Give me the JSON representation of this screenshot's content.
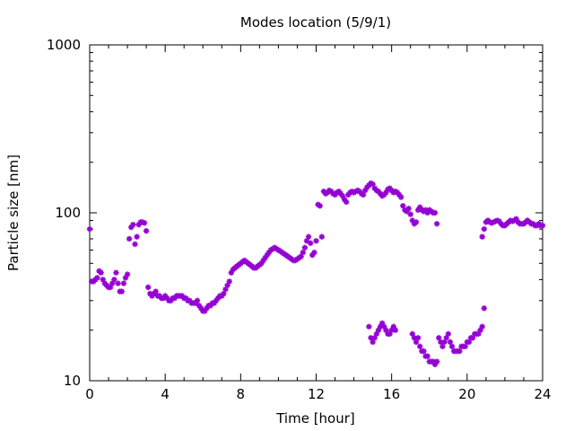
{
  "chart_data": {
    "type": "scatter",
    "title": "Modes location (5/9/1)",
    "xlabel": "Time [hour]",
    "ylabel": "Particle size [nm]",
    "xlim": [
      0,
      24
    ],
    "ylim": [
      10,
      1000
    ],
    "yscale": "log",
    "xticks": [
      0,
      4,
      8,
      12,
      16,
      20,
      24
    ],
    "xtick_labels": [
      "0",
      "4",
      "8",
      "12",
      "16",
      "20",
      "24"
    ],
    "yticks": [
      10,
      100,
      1000
    ],
    "ytick_labels": [
      "10",
      "100",
      "1000"
    ],
    "grid": false,
    "legend": "none",
    "marker": "star",
    "marker_color": "#9400d3",
    "points": [
      [
        0.0,
        80
      ],
      [
        0.1,
        39
      ],
      [
        0.2,
        39
      ],
      [
        0.3,
        40
      ],
      [
        0.4,
        41
      ],
      [
        0.5,
        45
      ],
      [
        0.6,
        44
      ],
      [
        0.7,
        40
      ],
      [
        0.8,
        38
      ],
      [
        0.9,
        37
      ],
      [
        1.0,
        36
      ],
      [
        1.1,
        36
      ],
      [
        1.2,
        38
      ],
      [
        1.3,
        40
      ],
      [
        1.4,
        44
      ],
      [
        1.5,
        38
      ],
      [
        1.6,
        34
      ],
      [
        1.7,
        34
      ],
      [
        1.8,
        38
      ],
      [
        1.9,
        41
      ],
      [
        2.0,
        43
      ],
      [
        2.1,
        70
      ],
      [
        2.2,
        82
      ],
      [
        2.3,
        85
      ],
      [
        2.4,
        65
      ],
      [
        2.5,
        72
      ],
      [
        2.6,
        85
      ],
      [
        2.7,
        88
      ],
      [
        2.8,
        88
      ],
      [
        2.9,
        87
      ],
      [
        3.0,
        78
      ],
      [
        3.1,
        36
      ],
      [
        3.2,
        33
      ],
      [
        3.3,
        32
      ],
      [
        3.4,
        33
      ],
      [
        3.5,
        34
      ],
      [
        3.6,
        32
      ],
      [
        3.7,
        32
      ],
      [
        3.8,
        31
      ],
      [
        3.9,
        31
      ],
      [
        4.0,
        32
      ],
      [
        4.1,
        31
      ],
      [
        4.2,
        30
      ],
      [
        4.3,
        30
      ],
      [
        4.4,
        31
      ],
      [
        4.5,
        31
      ],
      [
        4.6,
        32
      ],
      [
        4.7,
        32
      ],
      [
        4.8,
        32
      ],
      [
        4.9,
        32
      ],
      [
        5.0,
        31
      ],
      [
        5.1,
        31
      ],
      [
        5.2,
        30
      ],
      [
        5.3,
        30
      ],
      [
        5.4,
        29
      ],
      [
        5.5,
        29
      ],
      [
        5.6,
        29
      ],
      [
        5.7,
        30
      ],
      [
        5.8,
        28
      ],
      [
        5.9,
        27
      ],
      [
        6.0,
        26
      ],
      [
        6.1,
        26
      ],
      [
        6.2,
        27
      ],
      [
        6.3,
        28
      ],
      [
        6.4,
        28
      ],
      [
        6.5,
        29
      ],
      [
        6.6,
        29
      ],
      [
        6.7,
        30
      ],
      [
        6.8,
        31
      ],
      [
        6.9,
        32
      ],
      [
        7.0,
        32
      ],
      [
        7.1,
        33
      ],
      [
        7.2,
        35
      ],
      [
        7.3,
        37
      ],
      [
        7.4,
        39
      ],
      [
        7.5,
        44
      ],
      [
        7.6,
        46
      ],
      [
        7.7,
        47
      ],
      [
        7.8,
        48
      ],
      [
        7.9,
        49
      ],
      [
        8.0,
        50
      ],
      [
        8.1,
        51
      ],
      [
        8.2,
        52
      ],
      [
        8.3,
        51
      ],
      [
        8.4,
        50
      ],
      [
        8.5,
        49
      ],
      [
        8.6,
        48
      ],
      [
        8.7,
        47
      ],
      [
        8.8,
        47
      ],
      [
        8.9,
        48
      ],
      [
        9.0,
        49
      ],
      [
        9.1,
        50
      ],
      [
        9.2,
        52
      ],
      [
        9.3,
        54
      ],
      [
        9.4,
        56
      ],
      [
        9.5,
        58
      ],
      [
        9.6,
        60
      ],
      [
        9.7,
        61
      ],
      [
        9.8,
        62
      ],
      [
        9.9,
        61
      ],
      [
        10.0,
        60
      ],
      [
        10.1,
        59
      ],
      [
        10.2,
        58
      ],
      [
        10.3,
        57
      ],
      [
        10.4,
        56
      ],
      [
        10.5,
        55
      ],
      [
        10.6,
        54
      ],
      [
        10.7,
        53
      ],
      [
        10.8,
        52
      ],
      [
        10.9,
        52
      ],
      [
        11.0,
        53
      ],
      [
        11.1,
        54
      ],
      [
        11.2,
        55
      ],
      [
        11.3,
        58
      ],
      [
        11.4,
        62
      ],
      [
        11.5,
        68
      ],
      [
        11.6,
        72
      ],
      [
        11.7,
        66
      ],
      [
        11.8,
        56
      ],
      [
        11.9,
        58
      ],
      [
        12.0,
        68
      ],
      [
        12.1,
        112
      ],
      [
        12.2,
        110
      ],
      [
        12.3,
        72
      ],
      [
        12.4,
        134
      ],
      [
        12.5,
        130
      ],
      [
        12.6,
        132
      ],
      [
        12.7,
        136
      ],
      [
        12.8,
        134
      ],
      [
        12.9,
        130
      ],
      [
        13.0,
        128
      ],
      [
        13.1,
        132
      ],
      [
        13.2,
        134
      ],
      [
        13.3,
        130
      ],
      [
        13.4,
        126
      ],
      [
        13.5,
        120
      ],
      [
        13.6,
        116
      ],
      [
        13.7,
        128
      ],
      [
        13.8,
        132
      ],
      [
        13.9,
        134
      ],
      [
        14.0,
        132
      ],
      [
        14.1,
        134
      ],
      [
        14.2,
        136
      ],
      [
        14.3,
        134
      ],
      [
        14.4,
        130
      ],
      [
        14.5,
        128
      ],
      [
        14.6,
        136
      ],
      [
        14.7,
        142
      ],
      [
        14.8,
        146
      ],
      [
        14.9,
        150
      ],
      [
        15.0,
        148
      ],
      [
        15.1,
        140
      ],
      [
        15.2,
        136
      ],
      [
        15.3,
        134
      ],
      [
        15.4,
        130
      ],
      [
        15.5,
        126
      ],
      [
        15.6,
        128
      ],
      [
        15.7,
        132
      ],
      [
        15.8,
        138
      ],
      [
        15.9,
        140
      ],
      [
        16.0,
        136
      ],
      [
        16.1,
        132
      ],
      [
        16.2,
        134
      ],
      [
        16.3,
        132
      ],
      [
        16.4,
        128
      ],
      [
        16.5,
        124
      ],
      [
        16.6,
        110
      ],
      [
        16.7,
        104
      ],
      [
        16.8,
        102
      ],
      [
        16.9,
        106
      ],
      [
        17.0,
        98
      ],
      [
        17.1,
        90
      ],
      [
        17.2,
        86
      ],
      [
        17.3,
        88
      ],
      [
        17.4,
        104
      ],
      [
        17.5,
        108
      ],
      [
        17.6,
        104
      ],
      [
        17.7,
        102
      ],
      [
        17.8,
        104
      ],
      [
        17.9,
        100
      ],
      [
        18.0,
        104
      ],
      [
        18.1,
        102
      ],
      [
        18.2,
        100
      ],
      [
        18.3,
        100
      ],
      [
        18.4,
        86
      ],
      [
        14.8,
        21
      ],
      [
        14.9,
        18
      ],
      [
        15.0,
        17
      ],
      [
        15.1,
        18
      ],
      [
        15.2,
        19
      ],
      [
        15.3,
        20
      ],
      [
        15.4,
        21
      ],
      [
        15.5,
        22
      ],
      [
        15.6,
        21
      ],
      [
        15.7,
        20
      ],
      [
        15.8,
        19
      ],
      [
        15.9,
        19
      ],
      [
        16.0,
        20
      ],
      [
        16.1,
        21
      ],
      [
        16.2,
        20
      ],
      [
        17.1,
        19
      ],
      [
        17.2,
        18
      ],
      [
        17.3,
        17
      ],
      [
        17.4,
        18
      ],
      [
        17.5,
        16
      ],
      [
        17.6,
        15
      ],
      [
        17.7,
        15
      ],
      [
        17.8,
        14
      ],
      [
        17.9,
        14
      ],
      [
        18.0,
        13
      ],
      [
        18.1,
        13
      ],
      [
        18.2,
        13
      ],
      [
        18.3,
        12.5
      ],
      [
        18.4,
        13
      ],
      [
        18.5,
        18
      ],
      [
        18.6,
        17
      ],
      [
        18.7,
        16
      ],
      [
        18.8,
        17
      ],
      [
        18.9,
        18
      ],
      [
        19.0,
        19
      ],
      [
        19.1,
        17
      ],
      [
        19.2,
        16
      ],
      [
        19.3,
        15
      ],
      [
        19.4,
        15
      ],
      [
        19.5,
        15
      ],
      [
        19.6,
        15
      ],
      [
        19.7,
        16
      ],
      [
        19.8,
        16
      ],
      [
        19.9,
        16
      ],
      [
        20.0,
        17
      ],
      [
        20.1,
        17
      ],
      [
        20.2,
        18
      ],
      [
        20.3,
        18
      ],
      [
        20.4,
        19
      ],
      [
        20.5,
        19
      ],
      [
        20.6,
        19
      ],
      [
        20.7,
        20
      ],
      [
        20.8,
        21
      ],
      [
        20.9,
        27
      ],
      [
        20.8,
        72
      ],
      [
        20.9,
        80
      ],
      [
        21.0,
        88
      ],
      [
        21.1,
        90
      ],
      [
        21.2,
        88
      ],
      [
        21.3,
        87
      ],
      [
        21.4,
        88
      ],
      [
        21.5,
        89
      ],
      [
        21.6,
        90
      ],
      [
        21.7,
        89
      ],
      [
        21.8,
        86
      ],
      [
        21.9,
        84
      ],
      [
        22.0,
        84
      ],
      [
        22.1,
        86
      ],
      [
        22.2,
        88
      ],
      [
        22.3,
        90
      ],
      [
        22.4,
        89
      ],
      [
        22.5,
        90
      ],
      [
        22.6,
        92
      ],
      [
        22.7,
        88
      ],
      [
        22.8,
        86
      ],
      [
        22.9,
        86
      ],
      [
        23.0,
        86
      ],
      [
        23.1,
        88
      ],
      [
        23.2,
        90
      ],
      [
        23.3,
        88
      ],
      [
        23.4,
        86
      ],
      [
        23.5,
        86
      ],
      [
        23.6,
        84
      ],
      [
        23.7,
        84
      ],
      [
        23.8,
        86
      ],
      [
        23.9,
        84
      ],
      [
        24.0,
        84
      ]
    ]
  }
}
